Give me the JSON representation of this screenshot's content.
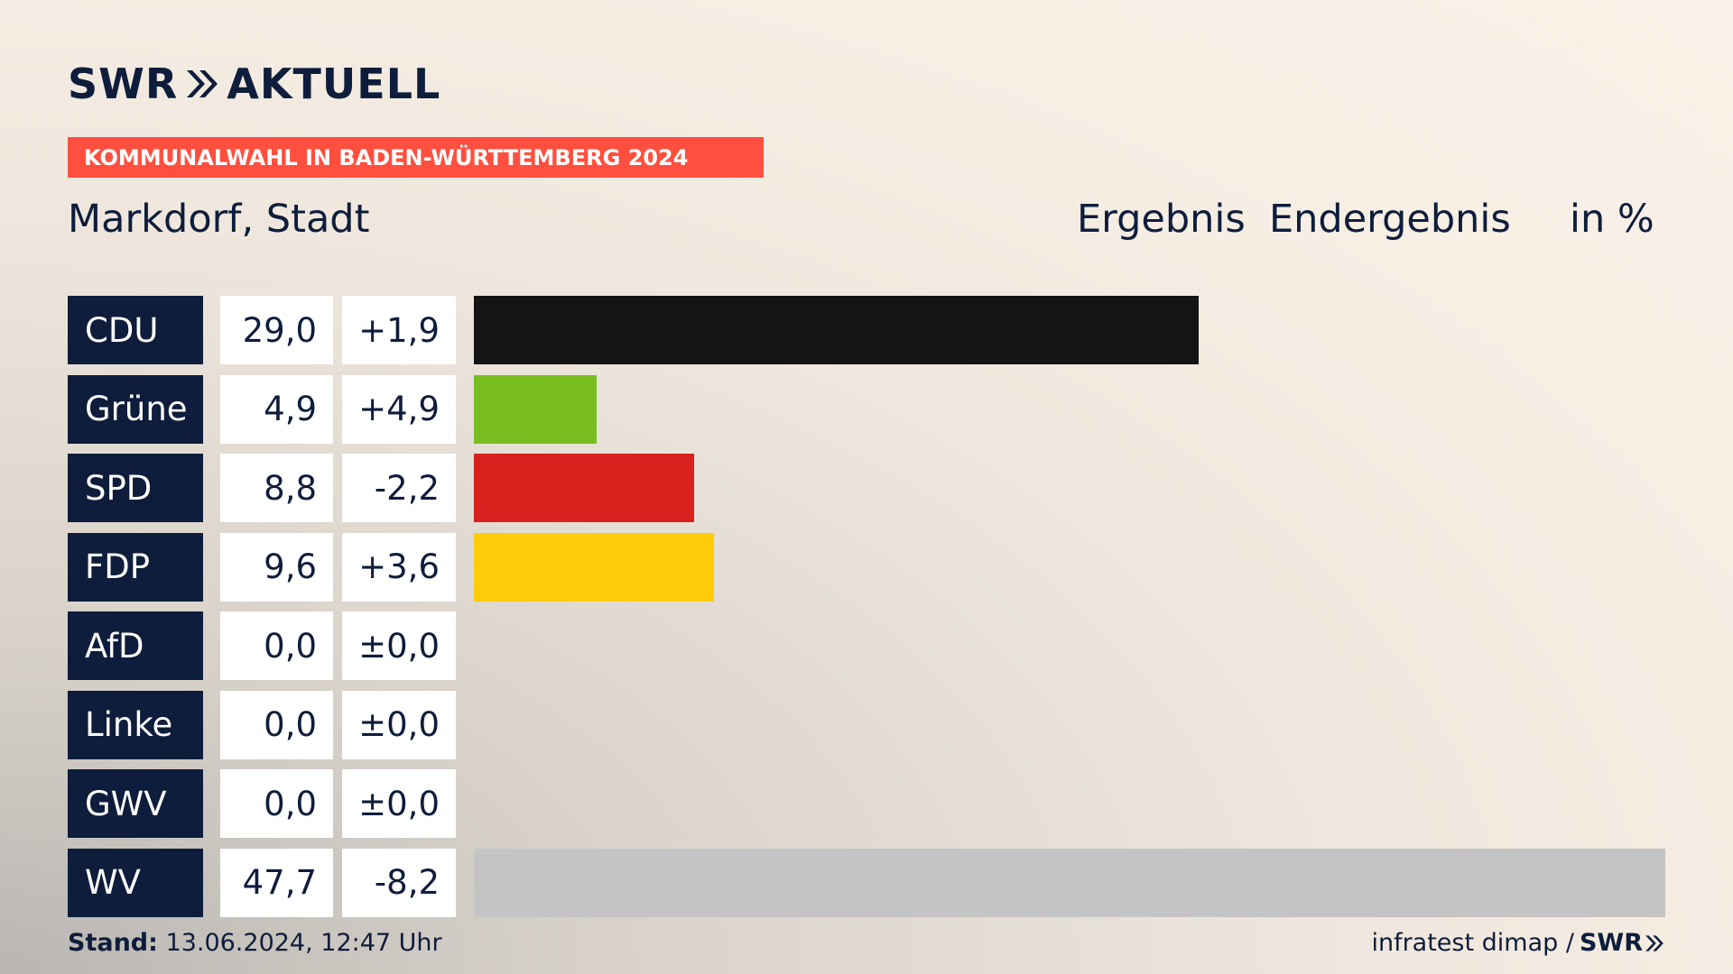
{
  "logo": {
    "text_left": "SWR",
    "text_right": "AKTUELL"
  },
  "banner": "KOMMUNALWAHL IN BADEN-WÜRTTEMBERG 2024",
  "place": "Markdorf, Stadt",
  "headers": {
    "h1": "Ergebnis",
    "h2": "Endergebnis",
    "h3": "in %"
  },
  "footer": {
    "stand_label": "Stand:",
    "stand_value": "13.06.2024, 12:47 Uhr",
    "source": "infratest dimap /",
    "brand": "SWR"
  },
  "chart_data": {
    "type": "bar",
    "categories": [
      "CDU",
      "Grüne",
      "SPD",
      "FDP",
      "AfD",
      "Linke",
      "GWV",
      "WV"
    ],
    "values": [
      29.0,
      4.9,
      8.8,
      9.6,
      0.0,
      0.0,
      0.0,
      47.7
    ],
    "value_labels": [
      "29,0",
      "4,9",
      "8,8",
      "9,6",
      "0,0",
      "0,0",
      "0,0",
      "47,7"
    ],
    "diff_labels": [
      "+1,9",
      "+4,9",
      "-2,2",
      "+3,6",
      "±0,0",
      "±0,0",
      "±0,0",
      "-8,2"
    ],
    "colors": [
      "#141414",
      "#78be20",
      "#d8201c",
      "#ffcc0a",
      "#00a0e6",
      "#c8006e",
      "#999999",
      "#c4c4c4"
    ],
    "xlim": [
      0,
      47.7
    ]
  }
}
